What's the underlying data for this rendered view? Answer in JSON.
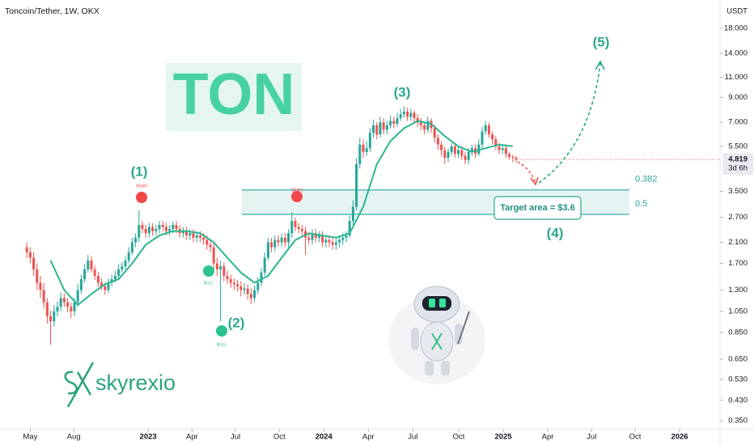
{
  "chart_data": {
    "type": "candlestick",
    "symbol": "Toncoin/Tether, 1W, OKX",
    "currency": "USDT",
    "log_scale": true,
    "ylim": [
      0.323,
      23.9
    ],
    "yticks": [
      {
        "value": 18,
        "label": "18.000"
      },
      {
        "value": 14,
        "label": "14.000"
      },
      {
        "value": 11,
        "label": "11.000"
      },
      {
        "value": 9,
        "label": "9.000"
      },
      {
        "value": 7,
        "label": "7.000"
      },
      {
        "value": 5.5,
        "label": "5.500"
      },
      {
        "value": 3.5,
        "label": "3.500"
      },
      {
        "value": 2.7,
        "label": "2.700"
      },
      {
        "value": 2.1,
        "label": "2.100"
      },
      {
        "value": 1.7,
        "label": "1.700"
      },
      {
        "value": 1.3,
        "label": "1.300"
      },
      {
        "value": 1.05,
        "label": "1.050"
      },
      {
        "value": 0.85,
        "label": "0.850"
      },
      {
        "value": 0.65,
        "label": "0.650"
      },
      {
        "value": 0.53,
        "label": "0.530"
      },
      {
        "value": 0.43,
        "label": "0.430"
      },
      {
        "value": 0.35,
        "label": "0.350"
      }
    ],
    "xlim": [
      -7.9,
      204
    ],
    "xticks": [
      {
        "value": 1,
        "label": "May"
      },
      {
        "value": 13.8,
        "label": "Aug"
      },
      {
        "value": 35.7,
        "label": "2023"
      },
      {
        "value": 48.6,
        "label": "Apr"
      },
      {
        "value": 61.4,
        "label": "Jul"
      },
      {
        "value": 74.3,
        "label": "Oct"
      },
      {
        "value": 87.4,
        "label": "2024"
      },
      {
        "value": 100.5,
        "label": "Apr"
      },
      {
        "value": 113.6,
        "label": "Jul"
      },
      {
        "value": 127.1,
        "label": "Oct"
      },
      {
        "value": 140.2,
        "label": "2025"
      },
      {
        "value": 153.3,
        "label": "Apr"
      },
      {
        "value": 166.2,
        "label": "Jul"
      },
      {
        "value": 179,
        "label": "Oct"
      },
      {
        "value": 192.1,
        "label": "2026"
      }
    ],
    "open": [
      2.0,
      1.9,
      1.8,
      1.6,
      1.4,
      1.3,
      1.15,
      1.0,
      0.95,
      1.05,
      1.1,
      1.2,
      1.15,
      1.1,
      1.05,
      1.15,
      1.3,
      1.45,
      1.6,
      1.75,
      1.6,
      1.5,
      1.4,
      1.35,
      1.3,
      1.4,
      1.45,
      1.5,
      1.6,
      1.65,
      1.75,
      1.9,
      2.1,
      2.2,
      2.5,
      2.4,
      2.3,
      2.45,
      2.35,
      2.4,
      2.5,
      2.45,
      2.35,
      2.4,
      2.5,
      2.4,
      2.3,
      2.35,
      2.25,
      2.3,
      2.2,
      2.25,
      2.2,
      2.15,
      2.05,
      2.0,
      1.7,
      1.6,
      1.65,
      1.5,
      1.45,
      1.4,
      1.38,
      1.35,
      1.3,
      1.32,
      1.25,
      1.2,
      1.3,
      1.4,
      1.55,
      1.8,
      2.1,
      2.0,
      2.15,
      2.1,
      2.2,
      2.1,
      2.3,
      2.6,
      2.45,
      2.4,
      2.35,
      2.2,
      2.15,
      2.3,
      2.2,
      2.25,
      2.1,
      2.15,
      2.1,
      2.05,
      2.1,
      2.15,
      2.2,
      2.25,
      2.6,
      3.0,
      4.6,
      5.6,
      5.2,
      5.4,
      6.3,
      6.8,
      6.2,
      7.0,
      6.5,
      6.8,
      7.1,
      6.9,
      7.3,
      7.6,
      7.8,
      7.4,
      7.7,
      7.3,
      7.0,
      6.8,
      6.5,
      7.1,
      6.6,
      6.0,
      5.6,
      5.3,
      4.9,
      5.2,
      5.5,
      5.1,
      5.3,
      5.0,
      4.8,
      5.2,
      5.4,
      5.1,
      5.6,
      6.4,
      6.8,
      6.2,
      5.9,
      5.5,
      5.3,
      5.4,
      5.1,
      4.95,
      4.9
    ],
    "high": [
      2.1,
      2.0,
      1.9,
      1.7,
      1.5,
      1.4,
      1.2,
      1.06,
      1.12,
      1.16,
      1.27,
      1.26,
      1.2,
      1.15,
      1.2,
      1.38,
      1.52,
      1.68,
      1.85,
      1.82,
      1.66,
      1.56,
      1.46,
      1.4,
      1.46,
      1.52,
      1.58,
      1.68,
      1.72,
      1.82,
      2.0,
      2.2,
      2.3,
      2.9,
      2.6,
      2.5,
      2.55,
      2.55,
      2.5,
      2.6,
      2.6,
      2.55,
      2.5,
      2.6,
      2.6,
      2.5,
      2.45,
      2.45,
      2.4,
      2.4,
      2.35,
      2.35,
      2.3,
      2.25,
      2.15,
      2.1,
      1.8,
      1.75,
      1.72,
      1.58,
      1.52,
      1.46,
      1.44,
      1.42,
      1.4,
      1.38,
      1.32,
      1.36,
      1.48,
      1.62,
      1.9,
      2.2,
      2.2,
      2.25,
      2.25,
      2.3,
      2.3,
      2.4,
      2.85,
      2.7,
      2.55,
      2.5,
      2.45,
      2.3,
      2.4,
      2.4,
      2.35,
      2.35,
      2.25,
      2.25,
      2.2,
      2.2,
      2.25,
      2.3,
      2.35,
      2.75,
      3.2,
      4.9,
      6.0,
      5.9,
      5.8,
      6.6,
      7.2,
      7.0,
      7.4,
      7.3,
      7.1,
      7.5,
      7.4,
      7.7,
      8.0,
      8.2,
      8.1,
      8.0,
      7.9,
      7.6,
      7.3,
      7.0,
      7.4,
      7.3,
      6.8,
      6.2,
      5.8,
      5.5,
      5.4,
      5.7,
      5.7,
      5.5,
      5.5,
      5.2,
      5.4,
      5.6,
      5.6,
      5.9,
      6.7,
      7.1,
      7.0,
      6.4,
      6.1,
      5.7,
      5.6,
      5.5,
      5.2,
      5.05,
      5.0
    ],
    "low": [
      1.8,
      1.7,
      1.5,
      1.3,
      1.2,
      1.08,
      0.93,
      0.75,
      0.9,
      1.0,
      1.05,
      1.1,
      1.04,
      0.98,
      1.0,
      1.1,
      1.25,
      1.4,
      1.55,
      1.55,
      1.44,
      1.34,
      1.3,
      1.24,
      1.26,
      1.35,
      1.4,
      1.45,
      1.55,
      1.6,
      1.7,
      1.85,
      2.0,
      2.1,
      2.3,
      2.2,
      2.2,
      2.25,
      2.25,
      2.3,
      2.35,
      2.25,
      2.25,
      2.3,
      2.3,
      2.2,
      2.2,
      2.15,
      2.15,
      2.1,
      2.1,
      2.1,
      2.05,
      1.95,
      1.9,
      1.6,
      1.5,
      0.95,
      1.42,
      1.38,
      1.33,
      1.3,
      1.28,
      1.22,
      1.24,
      1.18,
      1.13,
      1.15,
      1.25,
      1.35,
      1.5,
      1.75,
      1.9,
      1.92,
      2.0,
      2.0,
      2.0,
      2.0,
      2.2,
      2.35,
      2.3,
      2.25,
      1.85,
      2.05,
      2.05,
      2.1,
      2.1,
      2.0,
      2.0,
      2.0,
      1.95,
      1.95,
      2.0,
      2.05,
      2.1,
      2.2,
      2.5,
      2.9,
      4.4,
      4.9,
      5.0,
      5.2,
      6.0,
      5.9,
      6.0,
      6.2,
      6.2,
      6.6,
      6.6,
      6.7,
      7.1,
      7.3,
      7.1,
      7.1,
      7.0,
      6.7,
      6.5,
      6.2,
      6.3,
      6.3,
      5.7,
      5.3,
      5.0,
      4.6,
      4.7,
      5.0,
      4.9,
      4.9,
      4.8,
      4.6,
      4.6,
      5.0,
      4.9,
      5.0,
      5.4,
      6.2,
      6.0,
      5.6,
      5.3,
      5.1,
      5.1,
      4.9,
      4.8,
      4.7,
      4.7
    ],
    "close": [
      1.9,
      1.8,
      1.6,
      1.4,
      1.3,
      1.15,
      1.0,
      0.95,
      1.05,
      1.1,
      1.2,
      1.15,
      1.1,
      1.05,
      1.15,
      1.3,
      1.45,
      1.6,
      1.75,
      1.6,
      1.5,
      1.4,
      1.35,
      1.3,
      1.4,
      1.45,
      1.5,
      1.6,
      1.65,
      1.75,
      1.9,
      2.1,
      2.2,
      2.5,
      2.4,
      2.3,
      2.45,
      2.35,
      2.4,
      2.5,
      2.45,
      2.35,
      2.4,
      2.5,
      2.4,
      2.3,
      2.35,
      2.25,
      2.3,
      2.2,
      2.25,
      2.2,
      2.15,
      2.05,
      2.0,
      1.7,
      1.6,
      1.65,
      1.5,
      1.45,
      1.4,
      1.38,
      1.35,
      1.3,
      1.32,
      1.25,
      1.2,
      1.3,
      1.4,
      1.55,
      1.8,
      2.1,
      2.0,
      2.15,
      2.1,
      2.2,
      2.1,
      2.3,
      2.6,
      2.45,
      2.4,
      2.35,
      2.2,
      2.15,
      2.3,
      2.2,
      2.25,
      2.1,
      2.15,
      2.1,
      2.05,
      2.1,
      2.15,
      2.2,
      2.25,
      2.6,
      3.0,
      4.6,
      5.6,
      5.2,
      5.4,
      6.3,
      6.8,
      6.2,
      7.0,
      6.5,
      6.8,
      7.1,
      6.9,
      7.3,
      7.6,
      7.8,
      7.4,
      7.7,
      7.3,
      7.0,
      6.8,
      6.5,
      7.1,
      6.6,
      6.0,
      5.6,
      5.3,
      4.9,
      5.2,
      5.5,
      5.1,
      5.3,
      5.0,
      4.8,
      5.2,
      5.4,
      5.1,
      5.6,
      6.4,
      6.8,
      6.2,
      5.9,
      5.5,
      5.3,
      5.4,
      5.1,
      4.95,
      4.9,
      4.819
    ],
    "up_color": "#26a69a",
    "down_color": "#ef5350",
    "ma": {
      "color": "#2bb58f",
      "x": [
        7,
        11,
        15,
        19,
        23,
        27,
        31,
        35,
        39,
        43,
        47,
        51,
        55,
        59,
        63,
        67,
        71,
        75,
        79,
        83,
        87,
        91,
        95,
        99,
        103,
        107,
        111,
        115,
        119,
        123,
        127,
        131,
        135,
        139,
        143
      ],
      "values": [
        1.75,
        1.3,
        1.12,
        1.25,
        1.38,
        1.45,
        1.7,
        2.05,
        2.25,
        2.35,
        2.35,
        2.3,
        2.1,
        1.8,
        1.55,
        1.4,
        1.5,
        1.8,
        2.15,
        2.3,
        2.25,
        2.2,
        2.3,
        3.0,
        4.6,
        5.8,
        6.6,
        7.1,
        6.9,
        6.1,
        5.5,
        5.2,
        5.4,
        5.6,
        5.5
      ]
    },
    "last_price": 4.819,
    "countdown": "3d 6h",
    "watermark": "TON",
    "wave_labels": [
      "(1)",
      "(2)",
      "(3)",
      "(4)",
      "(5)"
    ],
    "signals": [
      {
        "label": "BEAR",
        "color": "#f04848"
      },
      {
        "label": "BULL",
        "color": "#2cc38f"
      },
      {
        "label": "BULL",
        "color": "#2cc38f"
      },
      {
        "label": "BEAR",
        "color": "#f04848"
      }
    ],
    "fib_levels": [
      {
        "ratio": 0.382,
        "value": 3.55
      },
      {
        "ratio": 0.5,
        "value": 2.78
      }
    ],
    "target": "Target area = $3.6",
    "logo": "skyrexio"
  }
}
